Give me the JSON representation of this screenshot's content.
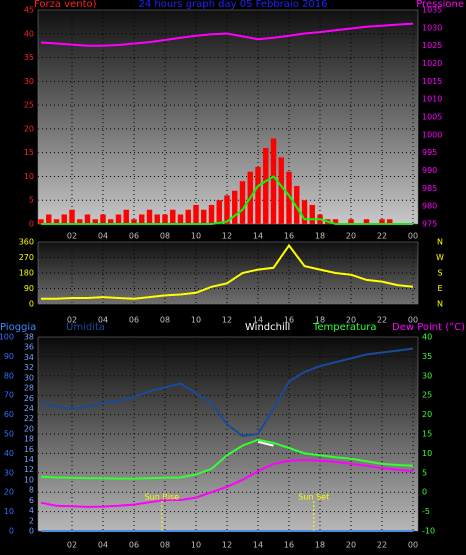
{
  "chart_data": [
    {
      "type": "line",
      "title": "24 hours graph day  05 Febbraio 2016",
      "ylabel": "Forza vento)",
      "y2label": "Pressione",
      "title_color": "#2020ff",
      "ylabel_color": "#ff2020",
      "y2label_color": "#ff00ff",
      "xlim": [
        0,
        24
      ],
      "xticks": [
        {
          "value": 2,
          "label": "02"
        },
        {
          "value": 4,
          "label": "04"
        },
        {
          "value": 6,
          "label": "06"
        },
        {
          "value": 8,
          "label": "08"
        },
        10,
        12,
        14,
        16,
        18,
        20,
        22,
        {
          "value": 24,
          "label": "00"
        }
      ],
      "ylim": [
        0,
        45
      ],
      "yticks": [
        0,
        5,
        10,
        15,
        20,
        25,
        30,
        35,
        40,
        45
      ],
      "ytick_color": "#ff2020",
      "y2lim": [
        975,
        1035
      ],
      "y2ticks": [
        975,
        980,
        985,
        990,
        995,
        1000,
        1005,
        1010,
        1015,
        1020,
        1025,
        1030,
        1035
      ],
      "y2tick_color": "#ff00ff",
      "grid": true,
      "x": [
        0,
        1,
        2,
        3,
        4,
        5,
        6,
        7,
        8,
        9,
        10,
        11,
        12,
        13,
        14,
        15,
        16,
        17,
        18,
        19,
        20,
        21,
        22,
        23,
        24
      ],
      "series": [
        {
          "type": "bar",
          "color": "#ff0000",
          "x": [
            0,
            0.5,
            1,
            1.5,
            2,
            2.5,
            3,
            3.5,
            4,
            4.5,
            5,
            5.5,
            6,
            6.5,
            7,
            7.5,
            8,
            8.5,
            9,
            9.5,
            10,
            10.5,
            11,
            11.5,
            12,
            12.5,
            13,
            13.5,
            14,
            14.5,
            15,
            15.5,
            16,
            16.5,
            17,
            17.5,
            18,
            18.5,
            19,
            19.5,
            20,
            20.5,
            21,
            21.5,
            22,
            22.5,
            23,
            23.5,
            24
          ],
          "values": [
            1,
            2,
            1,
            2,
            3,
            1,
            2,
            1,
            2,
            1,
            2,
            3,
            1,
            2,
            3,
            2,
            2,
            3,
            2,
            3,
            4,
            3,
            4,
            5,
            6,
            7,
            9,
            11,
            12,
            16,
            18,
            14,
            11,
            8,
            5,
            4,
            2,
            1,
            1,
            0,
            1,
            0,
            1,
            0,
            1,
            1,
            0,
            0,
            0
          ]
        },
        {
          "color": "#00ff00",
          "values": [
            0,
            0,
            0,
            0,
            0,
            0,
            0,
            0,
            0,
            0,
            0,
            0,
            0.5,
            3,
            8,
            10,
            6,
            1,
            1,
            0,
            0,
            0,
            0,
            0,
            0
          ]
        },
        {
          "color": "#ff00ff",
          "axis": "y2",
          "values": [
            1025.9,
            1025.6,
            1025.3,
            1025.0,
            1025.0,
            1025.2,
            1025.6,
            1026.0,
            1026.6,
            1027.2,
            1027.8,
            1028.2,
            1028.4,
            1027.6,
            1026.8,
            1027.2,
            1027.8,
            1028.4,
            1028.8,
            1029.3,
            1029.8,
            1030.3,
            1030.6,
            1030.9,
            1031.2
          ]
        }
      ]
    },
    {
      "type": "line",
      "xlim": [
        0,
        24
      ],
      "xticks": [
        {
          "value": 2,
          "label": "02"
        },
        {
          "value": 4,
          "label": "04"
        },
        {
          "value": 6,
          "label": "06"
        },
        {
          "value": 8,
          "label": "08"
        },
        10,
        12,
        14,
        16,
        18,
        20,
        22,
        {
          "value": 24,
          "label": "00"
        }
      ],
      "ylim": [
        0,
        360
      ],
      "yticks": [
        0,
        90,
        180,
        270,
        360
      ],
      "ytick_color": "#ffff00",
      "y2lim": [
        0,
        360
      ],
      "y2ticks": [
        {
          "value": 0,
          "label": "N"
        },
        {
          "value": 90,
          "label": "E"
        },
        {
          "value": 180,
          "label": "S"
        },
        {
          "value": 270,
          "label": "W"
        },
        {
          "value": 360,
          "label": "N"
        }
      ],
      "y2tick_color": "#ffff00",
      "grid": true,
      "x": [
        0,
        1,
        2,
        3,
        4,
        5,
        6,
        7,
        8,
        9,
        10,
        11,
        12,
        13,
        14,
        15,
        16,
        17,
        18,
        19,
        20,
        21,
        22,
        23,
        24
      ],
      "series": [
        {
          "color": "#ffff00",
          "values": [
            30,
            30,
            35,
            35,
            40,
            35,
            30,
            40,
            50,
            55,
            65,
            100,
            120,
            180,
            200,
            210,
            340,
            220,
            200,
            180,
            170,
            140,
            130,
            110,
            100
          ]
        }
      ]
    },
    {
      "type": "line",
      "xlim": [
        0,
        24
      ],
      "xticks": [
        {
          "value": 2,
          "label": "02"
        },
        {
          "value": 4,
          "label": "04"
        },
        {
          "value": 6,
          "label": "06"
        },
        {
          "value": 8,
          "label": "08"
        },
        10,
        12,
        14,
        16,
        18,
        20,
        22,
        {
          "value": 24,
          "label": "00"
        }
      ],
      "ylim": [
        0,
        100
      ],
      "yticks": [
        0,
        10,
        20,
        30,
        40,
        50,
        60,
        70,
        80,
        90,
        100
      ],
      "ytick_color": "#3070ff",
      "y3lim": [
        0,
        38
      ],
      "y3ticks": [
        0,
        2,
        4,
        6,
        8,
        10,
        12,
        14,
        16,
        18,
        20,
        22,
        24,
        26,
        28,
        30,
        32,
        34,
        36,
        38
      ],
      "y3tick_color": "#70a0ff",
      "y2lim": [
        -10,
        40
      ],
      "y2ticks": [
        -10,
        -5,
        0,
        5,
        10,
        15,
        20,
        25,
        30,
        35,
        40
      ],
      "y2tick_color": "#33ff33",
      "grid": true,
      "x": [
        0,
        1,
        2,
        3,
        4,
        5,
        6,
        7,
        8,
        9,
        10,
        11,
        12,
        13,
        14,
        15,
        16,
        17,
        18,
        19,
        20,
        21,
        22,
        23,
        24
      ],
      "series": [
        {
          "name": "Pioggia",
          "color": "#3b8cff",
          "values": [
            0,
            0,
            0,
            0,
            0,
            0,
            0,
            0,
            0,
            0,
            0,
            0,
            0,
            0,
            0,
            0,
            0,
            0,
            0,
            0,
            0,
            0,
            0,
            0,
            0
          ]
        },
        {
          "name": "Umidita",
          "color": "#1a4a9a",
          "values": [
            66,
            64,
            63,
            64,
            66,
            67,
            69,
            72,
            74,
            76,
            71,
            66,
            55,
            49,
            50,
            63,
            77,
            82,
            85,
            87,
            89,
            91,
            92,
            93,
            94
          ]
        },
        {
          "name": "Windchill",
          "color": "#ffffff",
          "axis": "y2",
          "values": [
            null,
            null,
            null,
            null,
            null,
            null,
            null,
            null,
            null,
            null,
            null,
            null,
            null,
            null,
            13,
            12,
            null,
            null,
            null,
            null,
            null,
            null,
            null,
            null,
            null
          ]
        },
        {
          "name": "Temperatura",
          "color": "#33ff33",
          "axis": "y2",
          "values": [
            4,
            3.8,
            3.7,
            3.6,
            3.6,
            3.5,
            3.5,
            3.6,
            3.7,
            3.8,
            4.6,
            6,
            9.5,
            12,
            13.5,
            12.7,
            11.4,
            10,
            9.5,
            9,
            8.6,
            8,
            7.3,
            7,
            6.8
          ]
        },
        {
          "name": "Dew Point (°C)",
          "color": "#ff00ff",
          "axis": "y2",
          "values": [
            -2.7,
            -3.5,
            -3.6,
            -3.8,
            -3.7,
            -3.5,
            -3.2,
            -2.6,
            -2,
            -2,
            -1.4,
            0,
            1.4,
            3.2,
            5.4,
            7.3,
            8.1,
            8.3,
            8.1,
            7.8,
            7.3,
            6.8,
            6.2,
            5.8,
            5.4
          ]
        }
      ],
      "annotations": [
        {
          "text": "Sun Rise",
          "x": 7.8,
          "color": "#ffff00"
        },
        {
          "text": "Sun Set",
          "x": 17.6,
          "color": "#ffff00"
        }
      ]
    }
  ]
}
